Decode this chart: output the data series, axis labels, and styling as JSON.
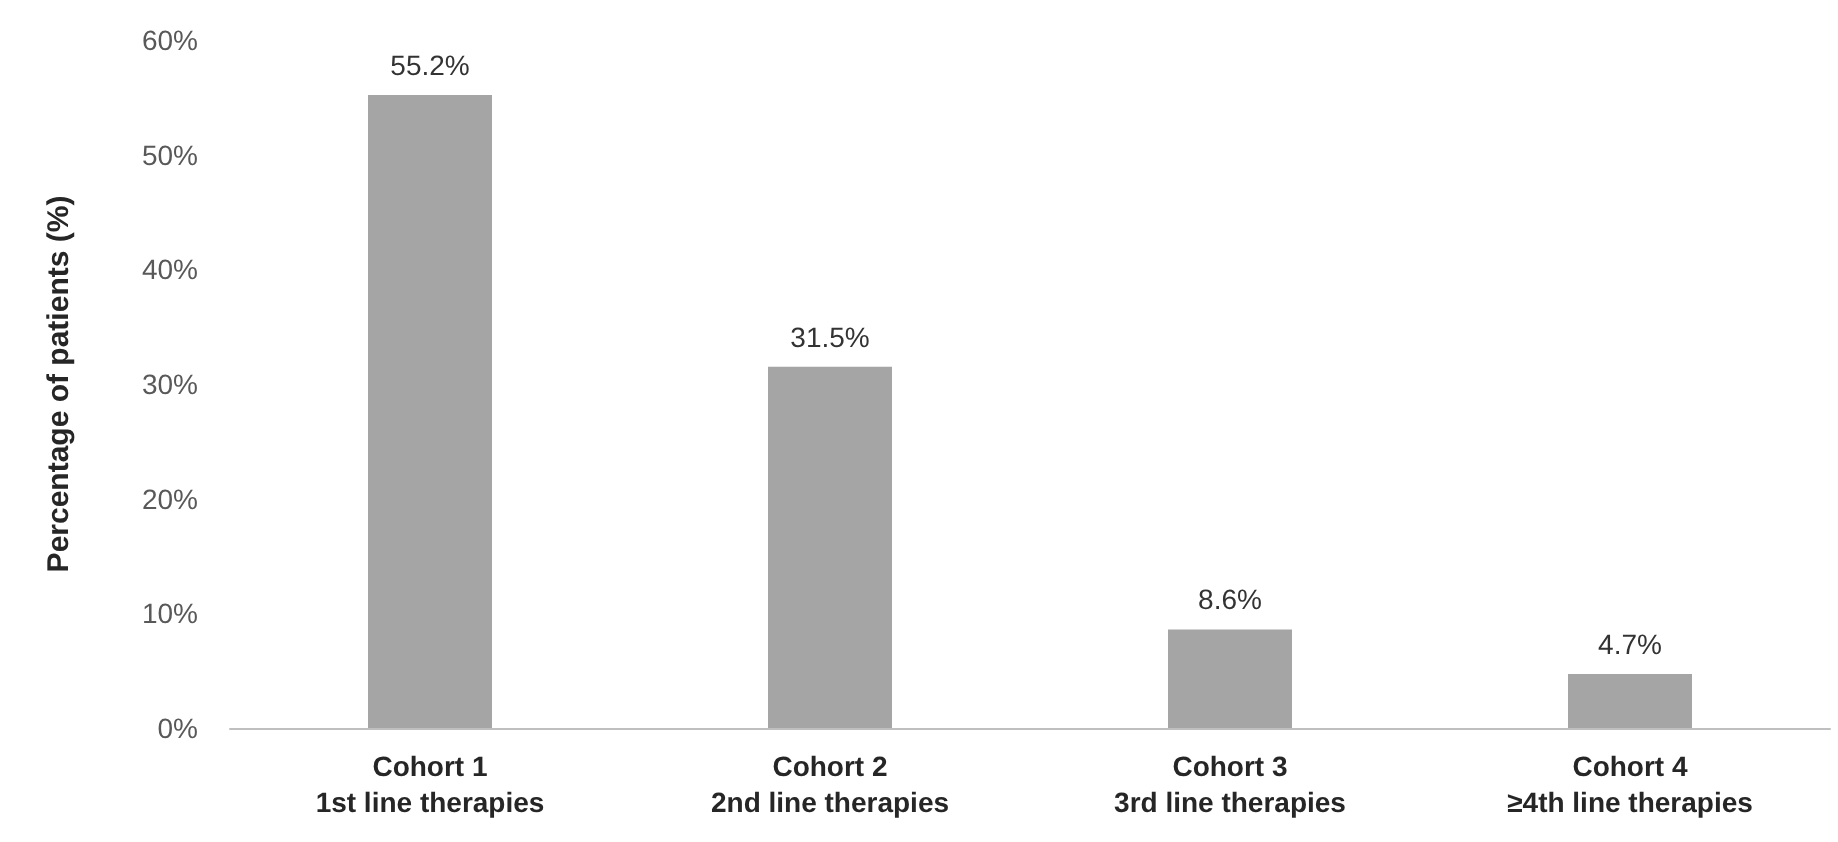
{
  "chart_data": {
    "type": "bar",
    "ylabel": "Percentage of patients (%)",
    "categories": [
      "Cohort 1\n1st line therapies",
      "Cohort 2\n2nd line therapies",
      "Cohort 3\n3rd line therapies",
      "Cohort 4\n≥4th line therapies"
    ],
    "values": [
      55.2,
      31.5,
      8.6,
      4.7
    ],
    "value_labels": [
      "55.2%",
      "31.5%",
      "8.6%",
      "4.7%"
    ],
    "color": "#a5a5a5",
    "ylim": [
      0,
      60
    ],
    "yticks": [
      {
        "value": 0,
        "label": "0%"
      },
      {
        "value": 10,
        "label": "10%"
      },
      {
        "value": 20,
        "label": "20%"
      },
      {
        "value": 30,
        "label": "30%"
      },
      {
        "value": 40,
        "label": "40%"
      },
      {
        "value": 50,
        "label": "50%"
      },
      {
        "value": 60,
        "label": "60%"
      }
    ],
    "grid": false
  }
}
